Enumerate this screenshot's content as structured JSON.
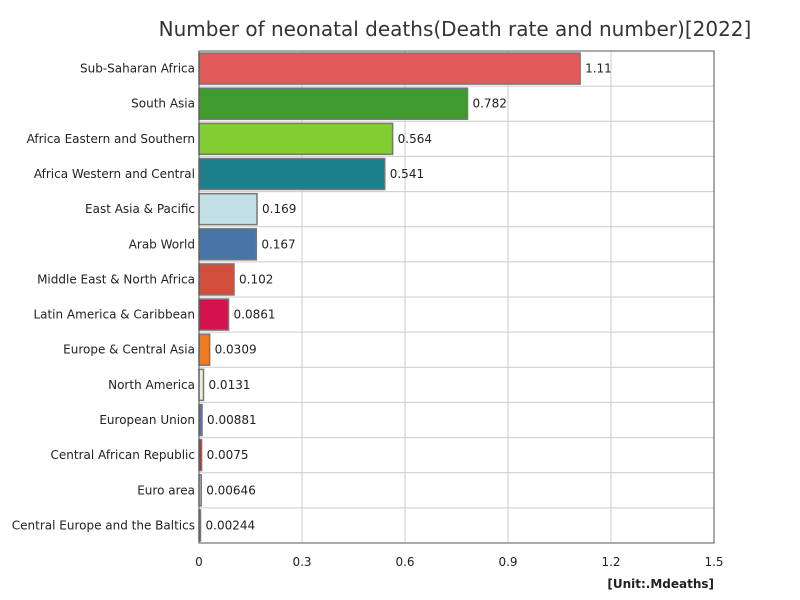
{
  "chart_data": {
    "type": "bar",
    "orientation": "horizontal",
    "title": "Number of neonatal deaths(Death rate and number)[2022]",
    "unit": "[Unit:.Mdeaths]",
    "xlim": [
      0,
      1.5
    ],
    "x_ticks": [
      "0",
      "0.3",
      "0.6",
      "0.9",
      "1.2",
      "1.5"
    ],
    "x_tick_values": [
      0,
      0.3,
      0.6,
      0.9,
      1.2,
      1.5
    ],
    "grid": true,
    "categories": [
      "Sub-Saharan Africa",
      "South Asia",
      "Africa Eastern and Southern",
      "Africa Western and Central",
      "East Asia & Pacific",
      "Arab World",
      "Middle East & North Africa",
      "Latin America & Caribbean",
      "Europe & Central Asia",
      "North America",
      "European Union",
      "Central African Republic",
      "Euro area",
      "Central Europe and the Baltics"
    ],
    "values": [
      1.11,
      0.782,
      0.564,
      0.541,
      0.169,
      0.167,
      0.102,
      0.0861,
      0.0309,
      0.0131,
      0.00881,
      0.0075,
      0.00646,
      0.00244
    ],
    "value_labels": [
      "1.11",
      "0.782",
      "0.564",
      "0.541",
      "0.169",
      "0.167",
      "0.102",
      "0.0861",
      "0.0309",
      "0.0131",
      "0.00881",
      "0.0075",
      "0.00646",
      "0.00244"
    ],
    "colors": [
      "#e05a5a",
      "#3f9b2e",
      "#82cd32",
      "#1e7f8c",
      "#c2dfe4",
      "#4775a8",
      "#d24e3c",
      "#d4124e",
      "#f07a1e",
      "#e8f0d8",
      "#5a6fa8",
      "#9a3a2a",
      "#cccccc",
      "#8fb0d8"
    ]
  }
}
